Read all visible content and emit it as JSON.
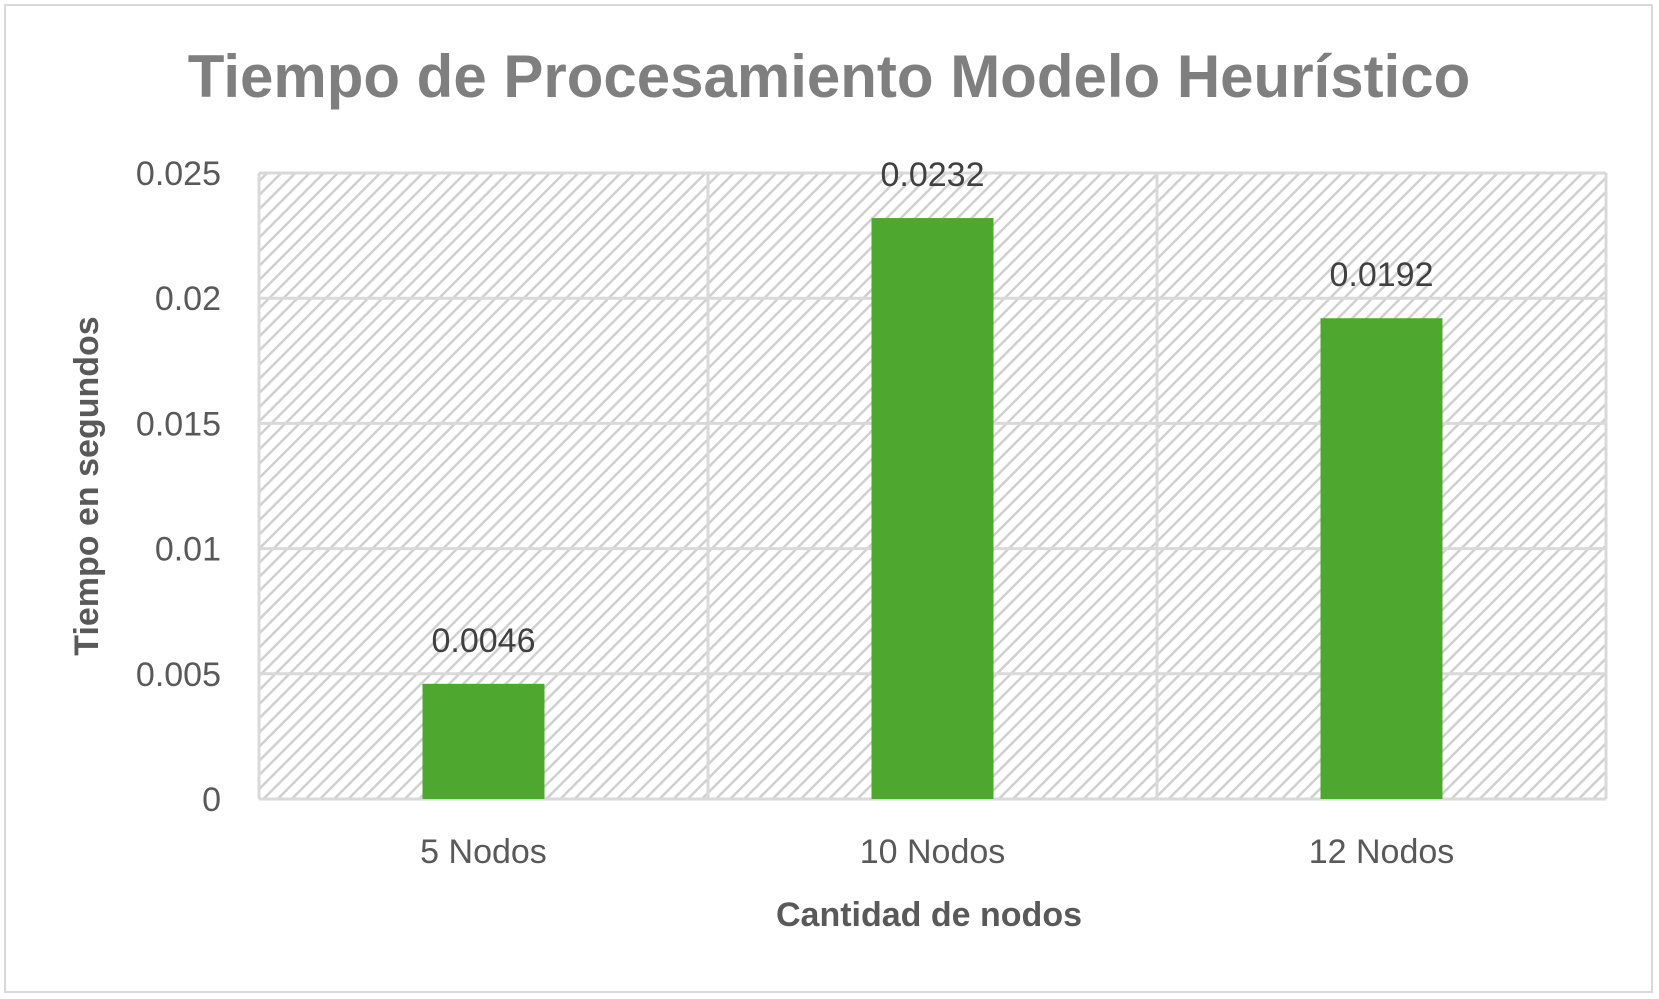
{
  "chart_data": {
    "type": "bar",
    "title": "Tiempo de Procesamiento Modelo Heurístico",
    "xlabel": "Cantidad de nodos",
    "ylabel": "Tiempo en segundos",
    "categories": [
      "5 Nodos",
      "10 Nodos",
      "12 Nodos"
    ],
    "values": [
      0.0046,
      0.0232,
      0.0192
    ],
    "data_labels": [
      "0.0046",
      "0.0232",
      "0.0192"
    ],
    "ylim": [
      0,
      0.025
    ],
    "yticks": [
      0,
      0.005,
      0.01,
      0.015,
      0.02,
      0.025
    ],
    "ytick_labels": [
      "0",
      "0.005",
      "0.01",
      "0.015",
      "0.02",
      "0.025"
    ],
    "grid": true,
    "legend": "none",
    "colors": {
      "bar": "#4ea72e",
      "title": "#7f7f7f",
      "axis_text": "#595959",
      "gridline": "#d9d9d9",
      "hatch": "#d0d0d0"
    }
  }
}
